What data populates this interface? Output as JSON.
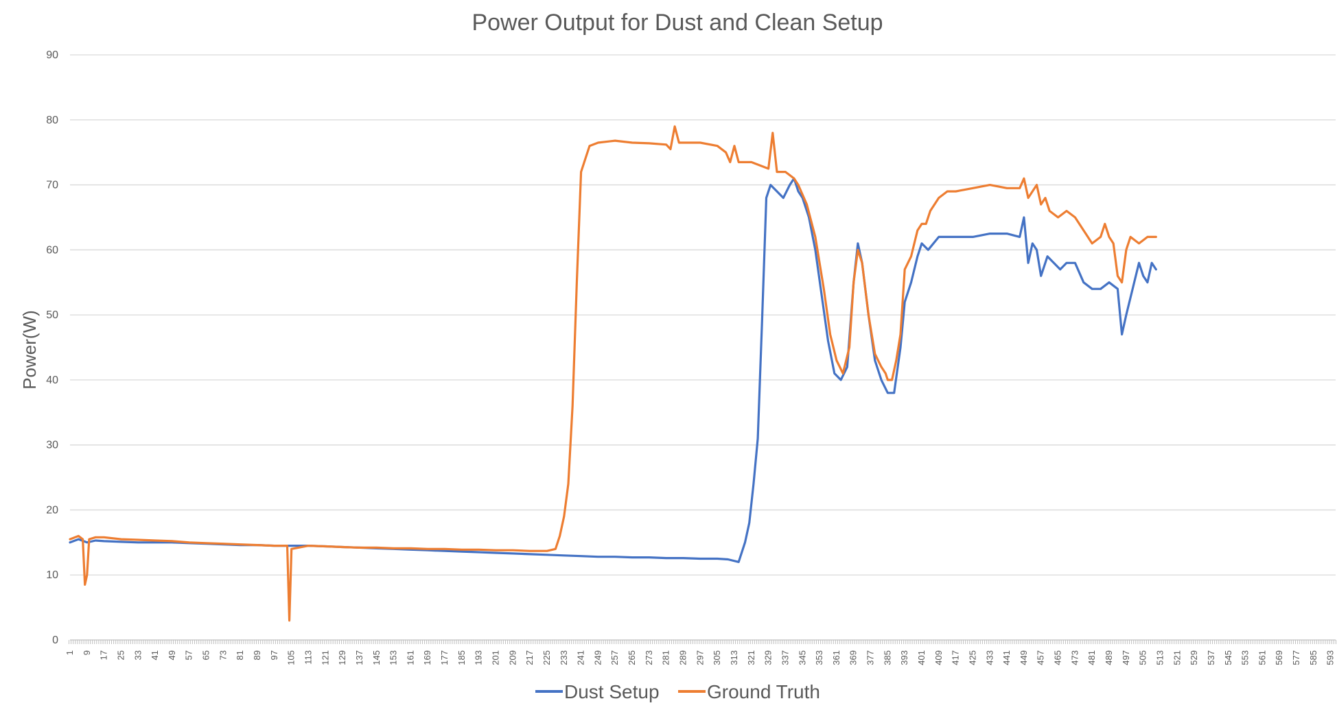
{
  "chart_data": {
    "type": "line",
    "title": "Power Output for Dust and Clean Setup",
    "xlabel": "",
    "ylabel": "Power(W)",
    "ylim": [
      0,
      90
    ],
    "yticks": [
      0,
      10,
      20,
      30,
      40,
      50,
      60,
      70,
      80,
      90
    ],
    "x_range": [
      1,
      596
    ],
    "x_tick_start": 1,
    "x_tick_step": 8,
    "x_tick_end": 593,
    "grid": "horizontal",
    "legend_position": "bottom",
    "series": [
      {
        "name": "Dust Setup",
        "color": "#4472C4",
        "points": [
          [
            1,
            15
          ],
          [
            5,
            15.5
          ],
          [
            9,
            15
          ],
          [
            13,
            15.3
          ],
          [
            17,
            15.2
          ],
          [
            25,
            15.1
          ],
          [
            33,
            15
          ],
          [
            41,
            15
          ],
          [
            49,
            15
          ],
          [
            57,
            14.9
          ],
          [
            65,
            14.8
          ],
          [
            73,
            14.7
          ],
          [
            81,
            14.6
          ],
          [
            89,
            14.6
          ],
          [
            97,
            14.5
          ],
          [
            105,
            14.5
          ],
          [
            113,
            14.5
          ],
          [
            121,
            14.4
          ],
          [
            129,
            14.3
          ],
          [
            137,
            14.2
          ],
          [
            145,
            14.1
          ],
          [
            153,
            14
          ],
          [
            161,
            13.9
          ],
          [
            169,
            13.8
          ],
          [
            177,
            13.7
          ],
          [
            185,
            13.6
          ],
          [
            193,
            13.5
          ],
          [
            201,
            13.4
          ],
          [
            209,
            13.3
          ],
          [
            217,
            13.2
          ],
          [
            225,
            13.1
          ],
          [
            233,
            13
          ],
          [
            241,
            12.9
          ],
          [
            249,
            12.8
          ],
          [
            257,
            12.8
          ],
          [
            265,
            12.7
          ],
          [
            273,
            12.7
          ],
          [
            281,
            12.6
          ],
          [
            289,
            12.6
          ],
          [
            297,
            12.5
          ],
          [
            305,
            12.5
          ],
          [
            310,
            12.4
          ],
          [
            315,
            12
          ],
          [
            318,
            15
          ],
          [
            320,
            18
          ],
          [
            322,
            24
          ],
          [
            324,
            31
          ],
          [
            326,
            49
          ],
          [
            328,
            68
          ],
          [
            330,
            70
          ],
          [
            333,
            69
          ],
          [
            336,
            68
          ],
          [
            339,
            70
          ],
          [
            341,
            71
          ],
          [
            343,
            69
          ],
          [
            345,
            68
          ],
          [
            348,
            65
          ],
          [
            351,
            60
          ],
          [
            354,
            53
          ],
          [
            357,
            46
          ],
          [
            360,
            41
          ],
          [
            363,
            40
          ],
          [
            366,
            42
          ],
          [
            369,
            55
          ],
          [
            371,
            61
          ],
          [
            373,
            58
          ],
          [
            376,
            50
          ],
          [
            379,
            43
          ],
          [
            382,
            40
          ],
          [
            385,
            38
          ],
          [
            388,
            38
          ],
          [
            391,
            45
          ],
          [
            393,
            52
          ],
          [
            396,
            55
          ],
          [
            399,
            59
          ],
          [
            401,
            61
          ],
          [
            404,
            60
          ],
          [
            409,
            62
          ],
          [
            417,
            62
          ],
          [
            425,
            62
          ],
          [
            433,
            62.5
          ],
          [
            441,
            62.5
          ],
          [
            447,
            62
          ],
          [
            449,
            65
          ],
          [
            451,
            58
          ],
          [
            453,
            61
          ],
          [
            455,
            60
          ],
          [
            457,
            56
          ],
          [
            460,
            59
          ],
          [
            463,
            58
          ],
          [
            466,
            57
          ],
          [
            469,
            58
          ],
          [
            473,
            58
          ],
          [
            477,
            55
          ],
          [
            481,
            54
          ],
          [
            485,
            54
          ],
          [
            489,
            55
          ],
          [
            493,
            54
          ],
          [
            495,
            47
          ],
          [
            497,
            50
          ],
          [
            500,
            54
          ],
          [
            503,
            58
          ],
          [
            505,
            56
          ],
          [
            507,
            55
          ],
          [
            509,
            58
          ],
          [
            511,
            57
          ]
        ]
      },
      {
        "name": "Ground Truth",
        "color": "#ED7D31",
        "points": [
          [
            1,
            15.5
          ],
          [
            5,
            16
          ],
          [
            7,
            15.5
          ],
          [
            8,
            8.5
          ],
          [
            9,
            10
          ],
          [
            10,
            15.5
          ],
          [
            13,
            15.8
          ],
          [
            17,
            15.8
          ],
          [
            25,
            15.5
          ],
          [
            33,
            15.4
          ],
          [
            41,
            15.3
          ],
          [
            49,
            15.2
          ],
          [
            57,
            15
          ],
          [
            65,
            14.9
          ],
          [
            73,
            14.8
          ],
          [
            81,
            14.7
          ],
          [
            89,
            14.6
          ],
          [
            97,
            14.5
          ],
          [
            103,
            14.5
          ],
          [
            104,
            3
          ],
          [
            105,
            14
          ],
          [
            113,
            14.5
          ],
          [
            121,
            14.4
          ],
          [
            129,
            14.3
          ],
          [
            137,
            14.2
          ],
          [
            145,
            14.2
          ],
          [
            153,
            14.1
          ],
          [
            161,
            14.1
          ],
          [
            169,
            14
          ],
          [
            177,
            14
          ],
          [
            185,
            13.9
          ],
          [
            193,
            13.9
          ],
          [
            201,
            13.8
          ],
          [
            209,
            13.8
          ],
          [
            217,
            13.7
          ],
          [
            225,
            13.7
          ],
          [
            229,
            14
          ],
          [
            231,
            16
          ],
          [
            233,
            19
          ],
          [
            235,
            24
          ],
          [
            237,
            36
          ],
          [
            239,
            55
          ],
          [
            241,
            72
          ],
          [
            243,
            74
          ],
          [
            245,
            76
          ],
          [
            249,
            76.5
          ],
          [
            257,
            76.8
          ],
          [
            265,
            76.5
          ],
          [
            273,
            76.4
          ],
          [
            281,
            76.2
          ],
          [
            283,
            75.5
          ],
          [
            285,
            79
          ],
          [
            287,
            76.5
          ],
          [
            297,
            76.5
          ],
          [
            305,
            76
          ],
          [
            309,
            75
          ],
          [
            311,
            73.5
          ],
          [
            313,
            76
          ],
          [
            315,
            73.5
          ],
          [
            321,
            73.5
          ],
          [
            325,
            73
          ],
          [
            329,
            72.5
          ],
          [
            331,
            78
          ],
          [
            333,
            72
          ],
          [
            337,
            72
          ],
          [
            341,
            71
          ],
          [
            343,
            70
          ],
          [
            347,
            67
          ],
          [
            351,
            62
          ],
          [
            355,
            54
          ],
          [
            358,
            47
          ],
          [
            361,
            43
          ],
          [
            364,
            41
          ],
          [
            367,
            45
          ],
          [
            369,
            55
          ],
          [
            371,
            60
          ],
          [
            373,
            58
          ],
          [
            376,
            50
          ],
          [
            379,
            44
          ],
          [
            382,
            42
          ],
          [
            384,
            41
          ],
          [
            385,
            40
          ],
          [
            387,
            40
          ],
          [
            389,
            43
          ],
          [
            391,
            47
          ],
          [
            393,
            57
          ],
          [
            396,
            59
          ],
          [
            399,
            63
          ],
          [
            401,
            64
          ],
          [
            403,
            64
          ],
          [
            405,
            66
          ],
          [
            409,
            68
          ],
          [
            413,
            69
          ],
          [
            417,
            69
          ],
          [
            425,
            69.5
          ],
          [
            433,
            70
          ],
          [
            441,
            69.5
          ],
          [
            447,
            69.5
          ],
          [
            449,
            71
          ],
          [
            451,
            68
          ],
          [
            453,
            69
          ],
          [
            455,
            70
          ],
          [
            457,
            67
          ],
          [
            459,
            68
          ],
          [
            461,
            66
          ],
          [
            465,
            65
          ],
          [
            469,
            66
          ],
          [
            473,
            65
          ],
          [
            477,
            63
          ],
          [
            481,
            61
          ],
          [
            485,
            62
          ],
          [
            487,
            64
          ],
          [
            489,
            62
          ],
          [
            491,
            61
          ],
          [
            493,
            56
          ],
          [
            495,
            55
          ],
          [
            497,
            60
          ],
          [
            499,
            62
          ],
          [
            503,
            61
          ],
          [
            507,
            62
          ],
          [
            511,
            62
          ]
        ]
      }
    ]
  }
}
